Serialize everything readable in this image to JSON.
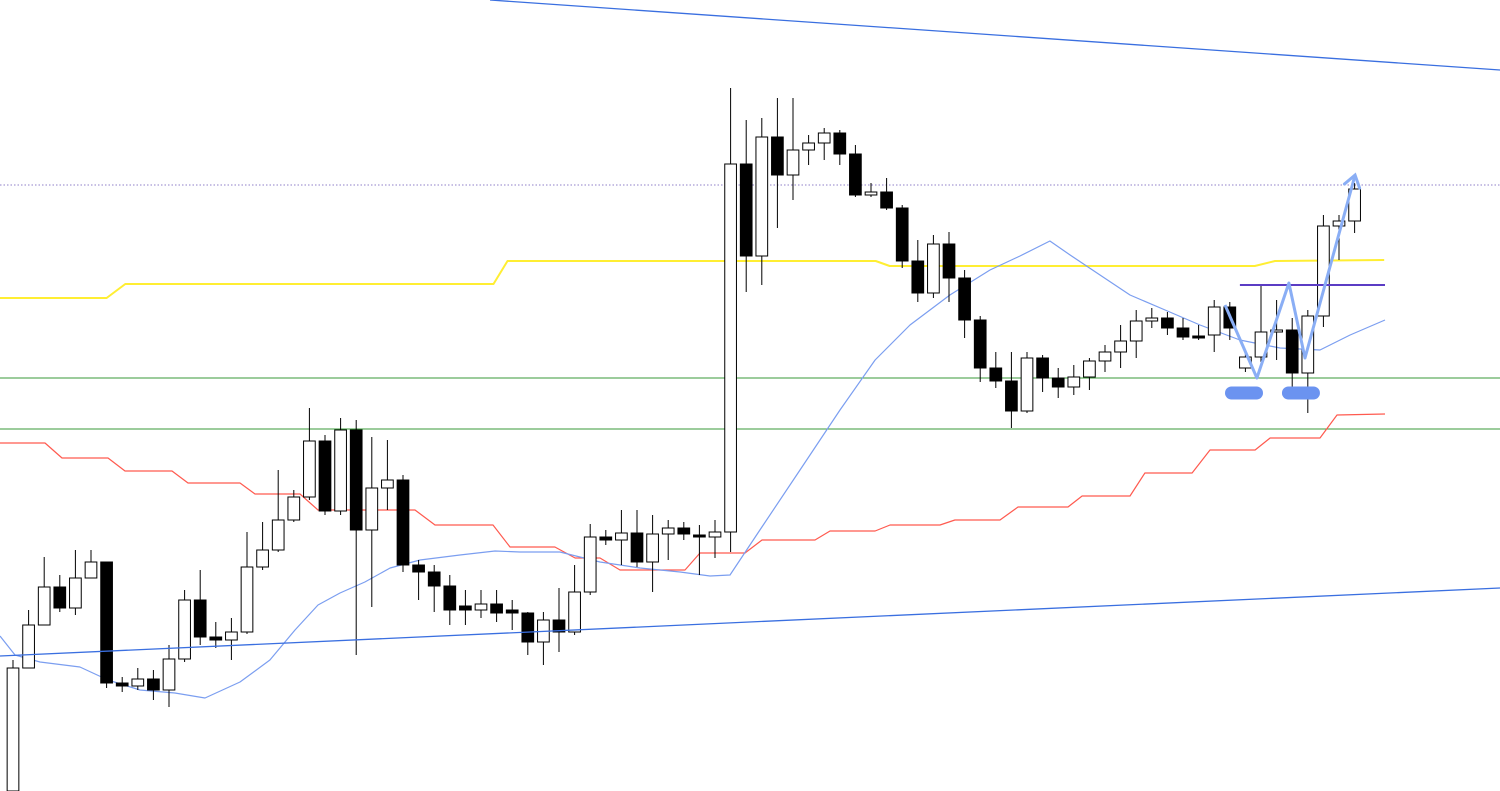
{
  "chart_data": {
    "type": "candlestick",
    "xlim": [
      -0.833,
      95.32
    ],
    "ylim": [
      0,
      791
    ],
    "up_color": "#ffffff",
    "down_color": "#000000",
    "edge_color": "#000000",
    "open": [
      0,
      123,
      166,
      204,
      183,
      213,
      229,
      108,
      105,
      112,
      101,
      132,
      191,
      154,
      151,
      159,
      224,
      241,
      271,
      294,
      350,
      280,
      361,
      261,
      303,
      311,
      226,
      219,
      205,
      185,
      181,
      187,
      181,
      178,
      149,
      171,
      159,
      199,
      254,
      251,
      258,
      229,
      257,
      263,
      256,
      254,
      259,
      627,
      535,
      654,
      616,
      641,
      648,
      658,
      637,
      596,
      599,
      583,
      530,
      498,
      547,
      513,
      471,
      423,
      410,
      380,
      433,
      413,
      404,
      414,
      430,
      439,
      450,
      470,
      473,
      463,
      455,
      456,
      484,
      423,
      434,
      459,
      461,
      418,
      475,
      565,
      570
    ],
    "high": [
      131,
      181,
      234,
      216,
      241,
      241,
      229,
      114,
      123,
      121,
      146,
      201,
      221,
      169,
      173,
      259,
      269,
      321,
      301,
      383,
      356,
      373,
      371,
      354,
      351,
      316,
      231,
      226,
      216,
      201,
      201,
      201,
      191,
      179,
      179,
      203,
      226,
      267,
      261,
      281,
      281,
      276,
      271,
      269,
      266,
      271,
      703,
      671,
      673,
      693,
      693,
      656,
      663,
      661,
      646,
      608,
      613,
      586,
      551,
      556,
      559,
      521,
      475,
      439,
      439,
      439,
      436,
      423,
      426,
      433,
      446,
      466,
      481,
      483,
      479,
      473,
      466,
      491,
      489,
      441,
      506,
      491,
      473,
      481,
      576,
      576,
      608
    ],
    "low": [
      0,
      123,
      166,
      179,
      176,
      213,
      103,
      99,
      101,
      91,
      84,
      129,
      146,
      143,
      131,
      157,
      221,
      239,
      269,
      291,
      276,
      276,
      136,
      184,
      281,
      219,
      191,
      179,
      166,
      166,
      173,
      169,
      161,
      136,
      126,
      139,
      156,
      196,
      246,
      226,
      224,
      199,
      231,
      251,
      216,
      233,
      239,
      499,
      506,
      563,
      591,
      626,
      631,
      626,
      594,
      594,
      581,
      523,
      489,
      493,
      489,
      453,
      409,
      403,
      363,
      378,
      399,
      393,
      396,
      401,
      419,
      423,
      433,
      463,
      456,
      451,
      451,
      439,
      451,
      419,
      429,
      431,
      401,
      378,
      464,
      531,
      558
    ],
    "close": [
      123,
      166,
      204,
      183,
      213,
      229,
      108,
      105,
      112,
      101,
      132,
      191,
      154,
      151,
      159,
      224,
      241,
      271,
      294,
      350,
      280,
      361,
      261,
      303,
      311,
      226,
      219,
      205,
      181,
      181,
      187,
      178,
      178,
      149,
      171,
      159,
      199,
      254,
      251,
      258,
      229,
      257,
      263,
      257,
      254,
      259,
      627,
      535,
      654,
      616,
      641,
      648,
      658,
      637,
      596,
      599,
      583,
      530,
      498,
      547,
      513,
      471,
      423,
      410,
      380,
      433,
      413,
      404,
      414,
      430,
      439,
      450,
      470,
      473,
      463,
      454,
      453,
      484,
      463,
      434,
      459,
      461,
      418,
      475,
      565,
      570,
      602
    ],
    "lines": [
      {
        "color": "#ffee33",
        "width": 2,
        "x": [
          -0.83,
          6.0,
          7.2,
          30.8,
          31.7,
          55.3,
          56.2,
          79.6,
          80.9,
          87.9
        ],
        "values": [
          493,
          493,
          507,
          507,
          530,
          530,
          525,
          525,
          530,
          531
        ]
      },
      {
        "color": "#ff5a4f",
        "width": 1.2,
        "x": [
          -0.83,
          2.05,
          3.14,
          6.09,
          7.18,
          10.19,
          11.22,
          14.55,
          15.51,
          18.4,
          19.55,
          25.77,
          27.05,
          30.77,
          31.86,
          34.74,
          36.03,
          37.63,
          38.91,
          43.08,
          44.04,
          46.92,
          48.01,
          51.41,
          52.37,
          55.26,
          56.22,
          59.42,
          60.38,
          63.27,
          64.42,
          67.63,
          68.53,
          71.6,
          72.56,
          75.58,
          76.73,
          79.62,
          80.58,
          83.78,
          84.87,
          87.95
        ],
        "values": [
          348,
          348,
          333,
          333,
          320,
          320,
          308,
          308,
          297,
          297,
          281,
          281,
          266,
          266,
          244,
          244,
          233,
          233,
          221,
          221,
          238,
          238,
          251,
          251,
          260,
          260,
          266,
          266,
          271,
          271,
          284,
          284,
          295,
          295,
          318,
          318,
          341,
          341,
          353,
          353,
          376,
          377
        ]
      },
      {
        "color": "#7b9ef0",
        "width": 1.2,
        "x": [
          -0.83,
          0.13,
          1.73,
          4.29,
          6.09,
          8.14,
          10.38,
          12.31,
          14.55,
          16.47,
          18.08,
          19.55,
          20.96,
          22.56,
          24.17,
          26.09,
          28.65,
          30.9,
          32.5,
          35.06,
          37.63,
          40.19,
          42.76,
          44.68,
          45.96,
          47.88,
          50.45,
          53.01,
          55.26,
          57.5,
          60.06,
          62.63,
          64.55,
          66.47,
          67.76,
          69.68,
          71.6,
          73.85,
          76.09,
          78.65,
          81.22,
          83.78,
          85.71,
          87.95
        ],
        "values": [
          155,
          136,
          129,
          124,
          111,
          101,
          98,
          93,
          109,
          131,
          161,
          186,
          198,
          209,
          223,
          231,
          236,
          240,
          239,
          239,
          229,
          223,
          219,
          215,
          216,
          261,
          321,
          381,
          431,
          466,
          496,
          521,
          535,
          550,
          536,
          516,
          496,
          481,
          466,
          451,
          443,
          441,
          456,
          471
        ]
      },
      {
        "color": "#3a6fe0",
        "width": 1.3,
        "x": [
          30.58,
          95.32
        ],
        "values": [
          791,
          721
        ]
      },
      {
        "color": "#3a6fe0",
        "width": 1.3,
        "x": [
          -0.83,
          95.32
        ],
        "values": [
          135,
          203
        ]
      },
      {
        "color": "#5b3cc4",
        "width": 2,
        "x": [
          78.65,
          87.95
        ],
        "values": [
          506,
          506
        ]
      },
      {
        "color": "#8aaef5",
        "width": 3,
        "arrow": true,
        "x": [
          77.69,
          79.74,
          81.79,
          82.82,
          86.03
        ],
        "values": [
          486,
          413,
          508,
          433,
          616
        ]
      }
    ],
    "hlines": [
      {
        "value": 413,
        "color": "#3a9a3a",
        "dash": false
      },
      {
        "value": 362,
        "color": "#3a9a3a",
        "dash": false
      },
      {
        "value": 606,
        "color": "#8f7fc8",
        "dash": true
      }
    ],
    "markers": {
      "color": "#6b93f0",
      "x": [
        78.91,
        82.56
      ],
      "values": [
        398,
        398
      ]
    }
  }
}
